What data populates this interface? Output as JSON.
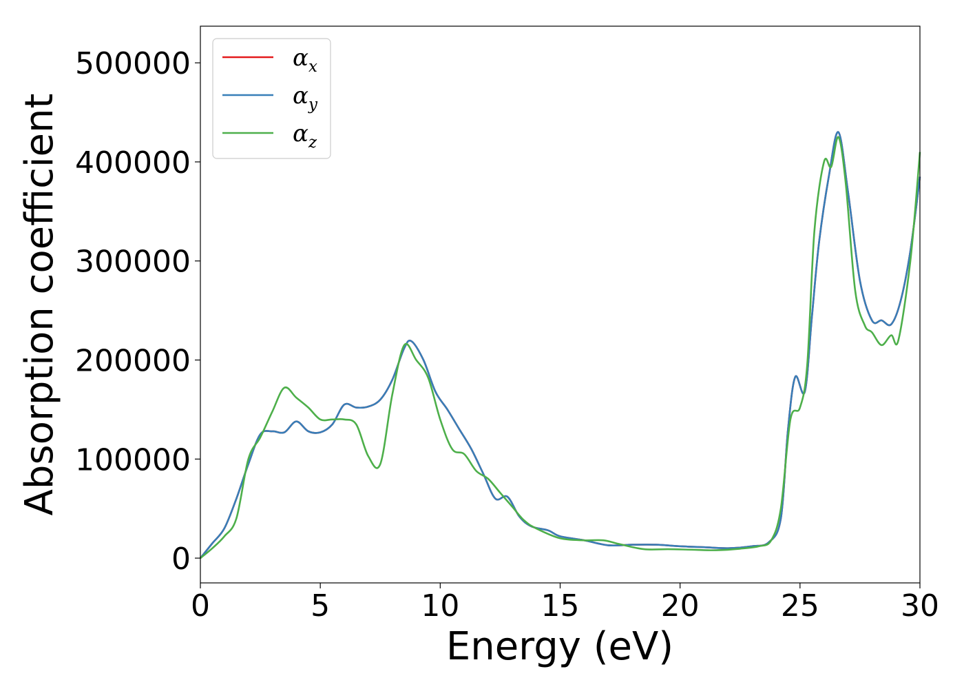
{
  "chart_data": {
    "type": "line",
    "xlabel": "Energy (eV)",
    "ylabel": "Absorption coefficient",
    "xlim": [
      0,
      30
    ],
    "ylim": [
      -25000,
      537000
    ],
    "xticks": [
      0,
      5,
      10,
      15,
      20,
      25,
      30
    ],
    "xtick_labels": [
      "0",
      "5",
      "10",
      "15",
      "20",
      "25",
      "30"
    ],
    "yticks": [
      0,
      100000,
      200000,
      300000,
      400000,
      500000
    ],
    "ytick_labels": [
      "0",
      "100000",
      "200000",
      "300000",
      "400000",
      "500000"
    ],
    "grid": false,
    "legend_position": "top-left",
    "series": [
      {
        "name": "α",
        "sub": "x",
        "color": "#e41a1c",
        "points": [
          [
            0,
            0
          ],
          [
            0.5,
            15000
          ],
          [
            1,
            30000
          ],
          [
            1.5,
            60000
          ],
          [
            2,
            95000
          ],
          [
            2.5,
            125000
          ],
          [
            3,
            128000
          ],
          [
            3.5,
            127000
          ],
          [
            4,
            138000
          ],
          [
            4.5,
            128000
          ],
          [
            5,
            127000
          ],
          [
            5.5,
            135000
          ],
          [
            6,
            155000
          ],
          [
            6.5,
            152000
          ],
          [
            7,
            153000
          ],
          [
            7.5,
            160000
          ],
          [
            8,
            180000
          ],
          [
            8.5,
            212000
          ],
          [
            8.8,
            219000
          ],
          [
            9.3,
            200000
          ],
          [
            9.8,
            168000
          ],
          [
            10.3,
            150000
          ],
          [
            10.8,
            130000
          ],
          [
            11.3,
            110000
          ],
          [
            11.8,
            85000
          ],
          [
            12.3,
            60000
          ],
          [
            12.8,
            62000
          ],
          [
            13.3,
            42000
          ],
          [
            13.8,
            32000
          ],
          [
            14.5,
            28000
          ],
          [
            15,
            22000
          ],
          [
            16,
            18000
          ],
          [
            17,
            13000
          ],
          [
            18,
            13500
          ],
          [
            19,
            13500
          ],
          [
            20,
            12000
          ],
          [
            21,
            11000
          ],
          [
            22,
            10000
          ],
          [
            23,
            12000
          ],
          [
            23.7,
            16000
          ],
          [
            24.2,
            40000
          ],
          [
            24.5,
            130000
          ],
          [
            24.8,
            183000
          ],
          [
            25.2,
            168000
          ],
          [
            25.5,
            245000
          ],
          [
            25.8,
            320000
          ],
          [
            26.2,
            385000
          ],
          [
            26.6,
            430000
          ],
          [
            27,
            370000
          ],
          [
            27.5,
            280000
          ],
          [
            28,
            240000
          ],
          [
            28.4,
            240000
          ],
          [
            28.8,
            236000
          ],
          [
            29.2,
            260000
          ],
          [
            29.6,
            310000
          ],
          [
            30,
            385000
          ]
        ]
      },
      {
        "name": "α",
        "sub": "y",
        "color": "#377eb8",
        "points": [
          [
            0,
            0
          ],
          [
            0.5,
            15000
          ],
          [
            1,
            30000
          ],
          [
            1.5,
            60000
          ],
          [
            2,
            95000
          ],
          [
            2.5,
            125000
          ],
          [
            3,
            128000
          ],
          [
            3.5,
            127000
          ],
          [
            4,
            138000
          ],
          [
            4.5,
            128000
          ],
          [
            5,
            127000
          ],
          [
            5.5,
            135000
          ],
          [
            6,
            155000
          ],
          [
            6.5,
            152000
          ],
          [
            7,
            153000
          ],
          [
            7.5,
            160000
          ],
          [
            8,
            180000
          ],
          [
            8.5,
            212000
          ],
          [
            8.8,
            219000
          ],
          [
            9.3,
            200000
          ],
          [
            9.8,
            168000
          ],
          [
            10.3,
            150000
          ],
          [
            10.8,
            130000
          ],
          [
            11.3,
            110000
          ],
          [
            11.8,
            85000
          ],
          [
            12.3,
            60000
          ],
          [
            12.8,
            62000
          ],
          [
            13.3,
            42000
          ],
          [
            13.8,
            32000
          ],
          [
            14.5,
            28000
          ],
          [
            15,
            22000
          ],
          [
            16,
            18000
          ],
          [
            17,
            13000
          ],
          [
            18,
            13500
          ],
          [
            19,
            13500
          ],
          [
            20,
            12000
          ],
          [
            21,
            11000
          ],
          [
            22,
            10000
          ],
          [
            23,
            12000
          ],
          [
            23.7,
            16000
          ],
          [
            24.2,
            40000
          ],
          [
            24.5,
            130000
          ],
          [
            24.8,
            183000
          ],
          [
            25.2,
            168000
          ],
          [
            25.5,
            245000
          ],
          [
            25.8,
            320000
          ],
          [
            26.2,
            385000
          ],
          [
            26.6,
            430000
          ],
          [
            27,
            370000
          ],
          [
            27.5,
            280000
          ],
          [
            28,
            240000
          ],
          [
            28.4,
            240000
          ],
          [
            28.8,
            236000
          ],
          [
            29.2,
            260000
          ],
          [
            29.6,
            310000
          ],
          [
            30,
            385000
          ]
        ]
      },
      {
        "name": "α",
        "sub": "z",
        "color": "#4daf4a",
        "points": [
          [
            0,
            0
          ],
          [
            0.5,
            10000
          ],
          [
            1,
            22000
          ],
          [
            1.5,
            40000
          ],
          [
            2,
            100000
          ],
          [
            2.5,
            122000
          ],
          [
            3,
            148000
          ],
          [
            3.5,
            172000
          ],
          [
            4,
            162000
          ],
          [
            4.5,
            152000
          ],
          [
            5,
            140000
          ],
          [
            5.5,
            140000
          ],
          [
            6,
            140000
          ],
          [
            6.5,
            135000
          ],
          [
            7,
            103000
          ],
          [
            7.5,
            95000
          ],
          [
            8,
            165000
          ],
          [
            8.5,
            215000
          ],
          [
            9,
            200000
          ],
          [
            9.5,
            182000
          ],
          [
            10,
            140000
          ],
          [
            10.5,
            110000
          ],
          [
            11,
            105000
          ],
          [
            11.5,
            88000
          ],
          [
            12,
            80000
          ],
          [
            12.5,
            66000
          ],
          [
            13,
            52000
          ],
          [
            13.5,
            38000
          ],
          [
            14,
            30000
          ],
          [
            15,
            20000
          ],
          [
            16,
            18000
          ],
          [
            16.8,
            18000
          ],
          [
            17.5,
            14000
          ],
          [
            18.5,
            9000
          ],
          [
            19.5,
            9000
          ],
          [
            20.5,
            8500
          ],
          [
            21.5,
            8000
          ],
          [
            22.5,
            9500
          ],
          [
            23.3,
            12000
          ],
          [
            23.8,
            18000
          ],
          [
            24.2,
            50000
          ],
          [
            24.6,
            140000
          ],
          [
            25,
            152000
          ],
          [
            25.3,
            195000
          ],
          [
            25.6,
            330000
          ],
          [
            26,
            400000
          ],
          [
            26.3,
            395000
          ],
          [
            26.6,
            425000
          ],
          [
            26.9,
            380000
          ],
          [
            27.3,
            270000
          ],
          [
            27.7,
            235000
          ],
          [
            28,
            228000
          ],
          [
            28.4,
            215000
          ],
          [
            28.8,
            225000
          ],
          [
            29.1,
            220000
          ],
          [
            29.6,
            300000
          ],
          [
            30,
            410000
          ]
        ]
      }
    ]
  }
}
